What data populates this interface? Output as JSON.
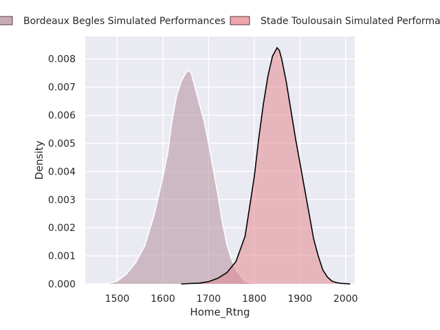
{
  "chart_data": {
    "type": "area",
    "subtype": "kde",
    "title": "",
    "xlabel": "Home_Rtng",
    "ylabel": "Density",
    "xlim": [
      1430,
      2020
    ],
    "ylim": [
      0,
      0.0088
    ],
    "xticks": [
      1500,
      1600,
      1700,
      1800,
      1900,
      2000
    ],
    "yticks": [
      0.0,
      0.001,
      0.002,
      0.003,
      0.004,
      0.005,
      0.006,
      0.007,
      0.008
    ],
    "yticklabels": [
      "0.000",
      "0.001",
      "0.002",
      "0.003",
      "0.004",
      "0.005",
      "0.006",
      "0.007",
      "0.008"
    ],
    "grid": true,
    "legend_position": "top",
    "series": [
      {
        "name": "Bordeaux Begles Simulated Performances",
        "fill": "#b4909f",
        "line": "#ffffff",
        "x": [
          1455,
          1480,
          1500,
          1520,
          1540,
          1560,
          1580,
          1600,
          1610,
          1620,
          1630,
          1640,
          1650,
          1656,
          1662,
          1670,
          1680,
          1690,
          1700,
          1710,
          1720,
          1730,
          1740,
          1750,
          1760,
          1770,
          1780,
          1790,
          1800,
          1820,
          1840
        ],
        "y": [
          0.0,
          2e-05,
          0.0001,
          0.00035,
          0.00075,
          0.00135,
          0.0024,
          0.0038,
          0.0046,
          0.0058,
          0.0067,
          0.0072,
          0.0075,
          0.0076,
          0.0075,
          0.007,
          0.0064,
          0.0058,
          0.005,
          0.0041,
          0.0032,
          0.0022,
          0.0014,
          0.0009,
          0.0005,
          0.0003,
          0.0001,
          5e-05,
          2e-05,
          1e-05,
          0.0
        ]
      },
      {
        "name": "Stade Toulousain Simulated Performances",
        "fill": "#e48a92",
        "line": "#000000",
        "x": [
          1640,
          1680,
          1700,
          1720,
          1740,
          1760,
          1780,
          1800,
          1810,
          1820,
          1830,
          1840,
          1850,
          1855,
          1860,
          1870,
          1880,
          1890,
          1900,
          1910,
          1920,
          1930,
          1940,
          1950,
          1960,
          1970,
          1980,
          1990,
          2000,
          2010
        ],
        "y": [
          0.0,
          3e-05,
          8e-05,
          0.0002,
          0.0004,
          0.0008,
          0.0017,
          0.0038,
          0.0052,
          0.0064,
          0.0074,
          0.0081,
          0.0084,
          0.0083,
          0.008,
          0.0072,
          0.0062,
          0.0052,
          0.0043,
          0.0034,
          0.0025,
          0.0016,
          0.001,
          0.0005,
          0.00025,
          0.0001,
          5e-05,
          2e-05,
          1e-05,
          0.0
        ]
      }
    ]
  }
}
